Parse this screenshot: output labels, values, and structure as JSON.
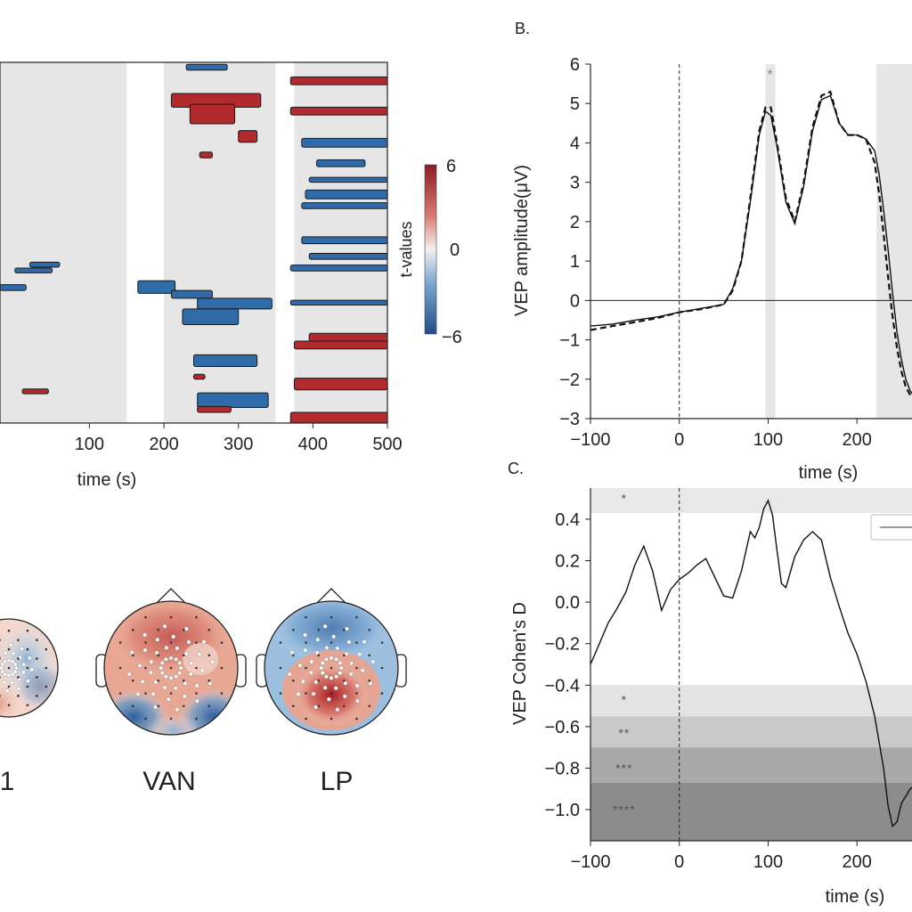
{
  "colors": {
    "positive": "#b2292e",
    "negative": "#2f6ba8",
    "background_band": "#e6e6e6",
    "line": "#111111"
  },
  "panel_a": {
    "chart_data": {
      "type": "heatmap",
      "xlabel": "time (s)",
      "xticks": [
        "100",
        "200",
        "300",
        "400",
        "500"
      ],
      "xlim": [
        -20,
        500
      ],
      "shaded_windows": [
        [
          -20,
          150
        ],
        [
          200,
          350
        ],
        [
          375,
          500
        ]
      ],
      "colorbar": {
        "label": "t-values",
        "ticks": [
          "6",
          "0",
          "−6"
        ],
        "range": [
          -6,
          6
        ]
      },
      "clusters": [
        {
          "sign": "neg",
          "row": 0.2,
          "t0": 230,
          "t1": 285,
          "th": 0.6
        },
        {
          "sign": "pos",
          "row": 1.5,
          "t0": 370,
          "t1": 500,
          "th": 0.8
        },
        {
          "sign": "pos",
          "row": 3.2,
          "t0": 210,
          "t1": 330,
          "th": 1.4
        },
        {
          "sign": "pos",
          "row": 4.3,
          "t0": 235,
          "t1": 295,
          "th": 2.0
        },
        {
          "sign": "pos",
          "row": 4.6,
          "t0": 370,
          "t1": 500,
          "th": 0.8
        },
        {
          "sign": "pos",
          "row": 7.0,
          "t0": 300,
          "t1": 325,
          "th": 1.2
        },
        {
          "sign": "neg",
          "row": 7.8,
          "t0": 385,
          "t1": 500,
          "th": 0.9
        },
        {
          "sign": "pos",
          "row": 9.2,
          "t0": 248,
          "t1": 265,
          "th": 0.6
        },
        {
          "sign": "neg",
          "row": 10.0,
          "t0": 405,
          "t1": 470,
          "th": 0.7
        },
        {
          "sign": "neg",
          "row": 11.8,
          "t0": 395,
          "t1": 500,
          "th": 0.5
        },
        {
          "sign": "neg",
          "row": 13.1,
          "t0": 390,
          "t1": 500,
          "th": 0.9
        },
        {
          "sign": "neg",
          "row": 14.4,
          "t0": 385,
          "t1": 500,
          "th": 0.6
        },
        {
          "sign": "neg",
          "row": 17.9,
          "t0": 385,
          "t1": 500,
          "th": 0.7
        },
        {
          "sign": "neg",
          "row": 19.6,
          "t0": 395,
          "t1": 500,
          "th": 0.6
        },
        {
          "sign": "neg",
          "row": 20.8,
          "t0": 370,
          "t1": 500,
          "th": 0.6
        },
        {
          "sign": "neg",
          "row": 20.5,
          "t0": 20,
          "t1": 60,
          "th": 0.5
        },
        {
          "sign": "neg",
          "row": 21.1,
          "t0": 0,
          "t1": 50,
          "th": 0.5
        },
        {
          "sign": "neg",
          "row": 22.4,
          "t0": 165,
          "t1": 215,
          "th": 1.3
        },
        {
          "sign": "neg",
          "row": 22.8,
          "t0": -20,
          "t1": 15,
          "th": 0.6
        },
        {
          "sign": "neg",
          "row": 23.4,
          "t0": 210,
          "t1": 265,
          "th": 0.8
        },
        {
          "sign": "neg",
          "row": 24.4,
          "t0": 370,
          "t1": 500,
          "th": 0.5
        },
        {
          "sign": "neg",
          "row": 24.2,
          "t0": 245,
          "t1": 345,
          "th": 1.1
        },
        {
          "sign": "neg",
          "row": 25.3,
          "t0": 225,
          "t1": 300,
          "th": 1.6
        },
        {
          "sign": "pos",
          "row": 27.8,
          "t0": 395,
          "t1": 500,
          "th": 0.9
        },
        {
          "sign": "pos",
          "row": 28.6,
          "t0": 375,
          "t1": 500,
          "th": 0.8
        },
        {
          "sign": "neg",
          "row": 30.0,
          "t0": 240,
          "t1": 325,
          "th": 1.2
        },
        {
          "sign": "pos",
          "row": 32.0,
          "t0": 240,
          "t1": 255,
          "th": 0.5
        },
        {
          "sign": "pos",
          "row": 32.4,
          "t0": 375,
          "t1": 500,
          "th": 1.2
        },
        {
          "sign": "pos",
          "row": 33.5,
          "t0": 10,
          "t1": 45,
          "th": 0.5
        },
        {
          "sign": "neg",
          "row": 33.9,
          "t0": 245,
          "t1": 340,
          "th": 1.5
        },
        {
          "sign": "pos",
          "row": 35.3,
          "t0": 245,
          "t1": 290,
          "th": 0.6
        },
        {
          "sign": "pos",
          "row": 35.9,
          "t0": 370,
          "t1": 500,
          "th": 1.4
        }
      ]
    }
  },
  "panel_b": {
    "label": "B.",
    "chart_data": {
      "type": "line",
      "xlabel": "time (s)",
      "ylabel": "VEP amplitude(μV)",
      "xlim": [
        -100,
        270
      ],
      "ylim": [
        -3,
        6
      ],
      "xticks": [
        "−100",
        "0",
        "100",
        "200"
      ],
      "yticks": [
        "−3",
        "−2",
        "−1",
        "0",
        "1",
        "2",
        "3",
        "4",
        "5",
        "6"
      ],
      "shaded_windows": [
        [
          97,
          108
        ],
        [
          222,
          270
        ]
      ],
      "significance_marker": {
        "x": 102,
        "y": 5.8,
        "label": "*"
      },
      "series": [
        {
          "style": "solid",
          "x": [
            -100,
            -75,
            -50,
            -25,
            0,
            25,
            50,
            60,
            70,
            80,
            90,
            97,
            103,
            110,
            120,
            130,
            140,
            150,
            160,
            170,
            180,
            190,
            200,
            210,
            220,
            225,
            230,
            235,
            240,
            245,
            250,
            255,
            260,
            265,
            270
          ],
          "y": [
            -0.65,
            -0.6,
            -0.5,
            -0.42,
            -0.3,
            -0.2,
            -0.1,
            0.3,
            1.0,
            2.5,
            4.2,
            4.8,
            4.7,
            3.9,
            2.5,
            1.95,
            2.9,
            4.3,
            5.1,
            5.2,
            4.5,
            4.2,
            4.2,
            4.1,
            3.8,
            3.2,
            2.3,
            1.3,
            0.2,
            -0.8,
            -1.5,
            -2.0,
            -2.3,
            -2.45,
            -2.5
          ]
        },
        {
          "style": "dashed",
          "x": [
            -100,
            -75,
            -50,
            -25,
            0,
            25,
            50,
            60,
            70,
            80,
            90,
            97,
            103,
            110,
            120,
            130,
            140,
            150,
            160,
            170,
            180,
            190,
            200,
            210,
            220,
            225,
            230,
            235,
            240,
            245,
            250,
            255,
            260,
            265,
            270
          ],
          "y": [
            -0.75,
            -0.65,
            -0.55,
            -0.45,
            -0.3,
            -0.22,
            -0.1,
            0.25,
            1.0,
            2.6,
            4.3,
            4.9,
            4.9,
            4.0,
            2.6,
            2.0,
            3.0,
            4.4,
            5.2,
            5.3,
            4.5,
            4.2,
            4.2,
            4.1,
            3.5,
            2.7,
            1.7,
            0.6,
            -0.4,
            -1.2,
            -1.8,
            -2.2,
            -2.4,
            -2.5,
            -2.55
          ]
        }
      ]
    }
  },
  "panel_c": {
    "label": "C.",
    "chart_data": {
      "type": "line",
      "xlabel": "time (s)",
      "ylabel": "VEP Cohen's D",
      "xlim": [
        -100,
        270
      ],
      "ylim": [
        -1.15,
        0.55
      ],
      "xticks": [
        "−100",
        "0",
        "100",
        "200"
      ],
      "yticks": [
        "0.4",
        "0.2",
        "0.0",
        "−0.2",
        "−0.4",
        "−0.6",
        "−0.8",
        "−1.0"
      ],
      "bands": [
        {
          "y0": 0.43,
          "y1": 0.55,
          "shade": "#e8e8e8"
        },
        {
          "y0": -0.55,
          "y1": -0.4,
          "shade": "#e3e3e3"
        },
        {
          "y0": -0.7,
          "y1": -0.55,
          "shade": "#c9c9c9"
        },
        {
          "y0": -0.87,
          "y1": -0.7,
          "shade": "#a9a9a9"
        },
        {
          "y0": -1.15,
          "y1": -0.87,
          "shade": "#8c8c8c"
        }
      ],
      "significance_markers": [
        {
          "x": -62,
          "y": 0.5,
          "label": "*"
        },
        {
          "x": -62,
          "y": -0.47,
          "label": "*"
        },
        {
          "x": -62,
          "y": -0.63,
          "label": "**"
        },
        {
          "x": -62,
          "y": -0.8,
          "label": "***"
        },
        {
          "x": -62,
          "y": -1.0,
          "label": "****"
        }
      ],
      "series": [
        {
          "style": "solid",
          "x": [
            -100,
            -90,
            -80,
            -70,
            -60,
            -50,
            -40,
            -30,
            -20,
            -10,
            0,
            10,
            20,
            30,
            40,
            50,
            60,
            70,
            80,
            85,
            90,
            95,
            100,
            105,
            110,
            115,
            120,
            130,
            140,
            150,
            160,
            170,
            180,
            190,
            200,
            210,
            220,
            230,
            235,
            240,
            245,
            250,
            260,
            270
          ],
          "y": [
            -0.3,
            -0.2,
            -0.1,
            -0.03,
            0.05,
            0.18,
            0.27,
            0.15,
            -0.04,
            0.06,
            0.11,
            0.14,
            0.18,
            0.21,
            0.12,
            0.03,
            0.02,
            0.15,
            0.34,
            0.31,
            0.36,
            0.45,
            0.49,
            0.42,
            0.25,
            0.09,
            0.07,
            0.22,
            0.3,
            0.34,
            0.3,
            0.12,
            -0.02,
            -0.15,
            -0.25,
            -0.38,
            -0.55,
            -0.8,
            -0.98,
            -1.08,
            -1.06,
            -0.97,
            -0.9,
            -0.87
          ]
        }
      ]
    }
  },
  "topomaps": [
    {
      "label": "1",
      "pattern": "p1"
    },
    {
      "label": "VAN",
      "pattern": "van"
    },
    {
      "label": "LP",
      "pattern": "lp"
    }
  ]
}
